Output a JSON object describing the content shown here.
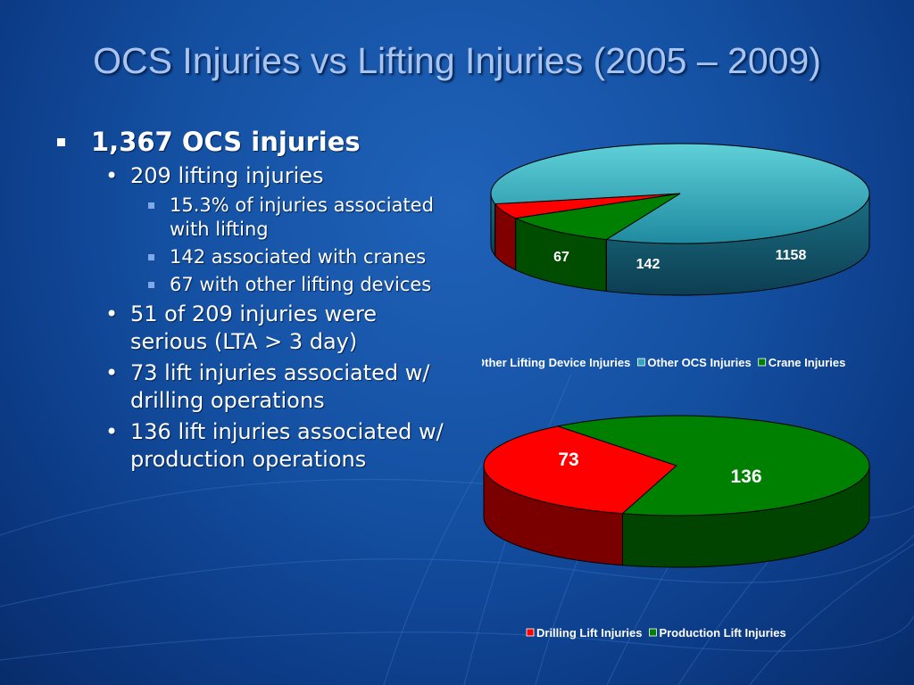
{
  "slide": {
    "title": "OCS Injuries vs Lifting Injuries (2005 – 2009)",
    "bullets": [
      {
        "level": 1,
        "text": "1,367 OCS injuries"
      },
      {
        "level": 2,
        "text": "209 lifting injuries"
      },
      {
        "level": 3,
        "text": "15.3% of injuries associated with lifting"
      },
      {
        "level": 3,
        "text": "142 associated with cranes"
      },
      {
        "level": 3,
        "text": "67 with other lifting devices"
      },
      {
        "level": 2,
        "text": "51 of 209 injuries were serious (LTA > 3 day)"
      },
      {
        "level": 2,
        "text": "73 lift injuries associated w/ drilling operations"
      },
      {
        "level": 2,
        "text": "136 lift injuries associated w/ production operations"
      }
    ]
  },
  "chart_data": [
    {
      "type": "pie",
      "categories": [
        "Other Lifting Device Injuries",
        "Other OCS Injuries",
        "Crane Injuries"
      ],
      "values": [
        67,
        1158,
        142
      ],
      "data_labels": [
        "67",
        "1158",
        "142"
      ],
      "colors": [
        "#ff0000",
        "#33a3b8",
        "#008000"
      ],
      "legend": "bottom"
    },
    {
      "type": "pie",
      "categories": [
        "Drilling Lift Injuries",
        "Production Lift Injuries"
      ],
      "values": [
        73,
        136
      ],
      "data_labels": [
        "73",
        "136"
      ],
      "colors": [
        "#ff0000",
        "#008000"
      ],
      "legend": "bottom"
    }
  ]
}
